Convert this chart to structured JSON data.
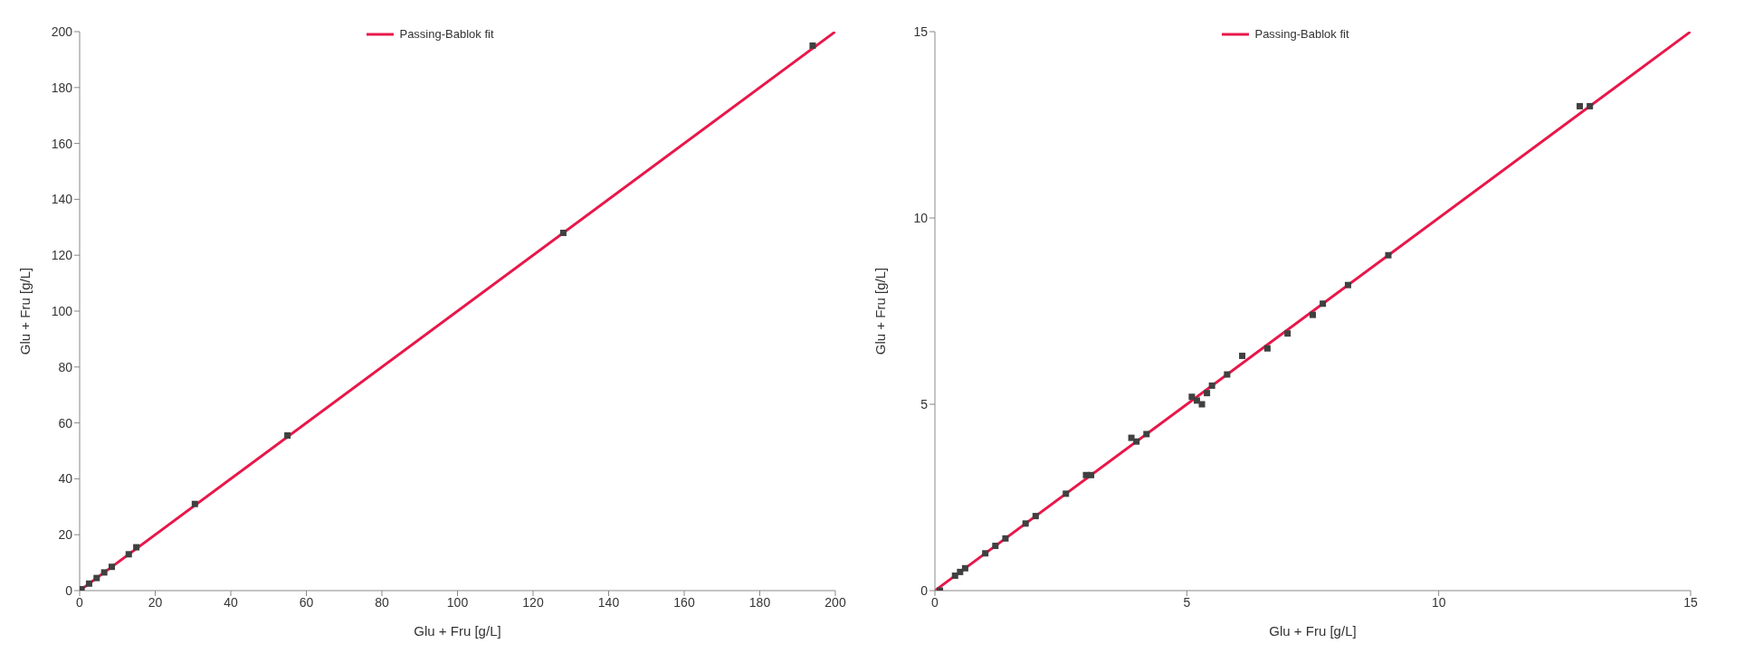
{
  "chart_data": [
    {
      "type": "scatter",
      "xlabel": "Glu + Fru [g/L]",
      "ylabel": "Glu + Fru [g/L]",
      "xlim": [
        0,
        200
      ],
      "ylim": [
        0,
        200
      ],
      "xticks": [
        0,
        20,
        40,
        60,
        80,
        100,
        120,
        140,
        160,
        180,
        200
      ],
      "yticks": [
        0,
        20,
        40,
        60,
        80,
        100,
        120,
        140,
        160,
        180,
        200
      ],
      "legend": "top",
      "series": [
        {
          "marker": "square",
          "color": "#404040",
          "x": [
            0.5,
            2.5,
            4.5,
            6.5,
            8.5,
            13,
            15,
            30.5,
            55,
            128,
            194
          ],
          "values": [
            0.5,
            2.5,
            4.5,
            6.5,
            8.5,
            13,
            15.5,
            31,
            55.5,
            128,
            195
          ]
        },
        {
          "type": "line",
          "marker": "none",
          "name": "Passing-Bablok fit",
          "color": "#e8174a",
          "x": [
            0,
            200
          ],
          "values": [
            0,
            200
          ]
        }
      ]
    },
    {
      "type": "scatter",
      "xlabel": "Glu + Fru [g/L]",
      "ylabel": "Glu + Fru [g/L]",
      "xlim": [
        0,
        15
      ],
      "ylim": [
        0,
        15
      ],
      "xticks": [
        0,
        5,
        10,
        15
      ],
      "yticks": [
        0,
        5,
        10,
        15
      ],
      "legend": "top",
      "series": [
        {
          "marker": "square",
          "color": "#404040",
          "x": [
            0.1,
            0.4,
            0.5,
            0.6,
            1.0,
            1.2,
            1.4,
            1.8,
            2.0,
            2.6,
            3.0,
            3.1,
            3.9,
            4.0,
            4.2,
            5.1,
            5.2,
            5.3,
            5.4,
            5.5,
            5.8,
            6.1,
            6.6,
            7.0,
            7.5,
            7.7,
            8.2,
            9.0,
            12.8,
            13.0
          ],
          "values": [
            0.0,
            0.4,
            0.5,
            0.6,
            1.0,
            1.2,
            1.4,
            1.8,
            2.0,
            2.6,
            3.1,
            3.1,
            4.1,
            4.0,
            4.2,
            5.2,
            5.1,
            5.0,
            5.3,
            5.5,
            5.8,
            6.3,
            6.5,
            6.9,
            7.4,
            7.7,
            8.2,
            9.0,
            13.0,
            13.0
          ]
        },
        {
          "type": "line",
          "marker": "none",
          "name": "Passing-Bablok fit",
          "color": "#e8174a",
          "x": [
            0,
            15
          ],
          "values": [
            0,
            15
          ]
        }
      ]
    }
  ]
}
